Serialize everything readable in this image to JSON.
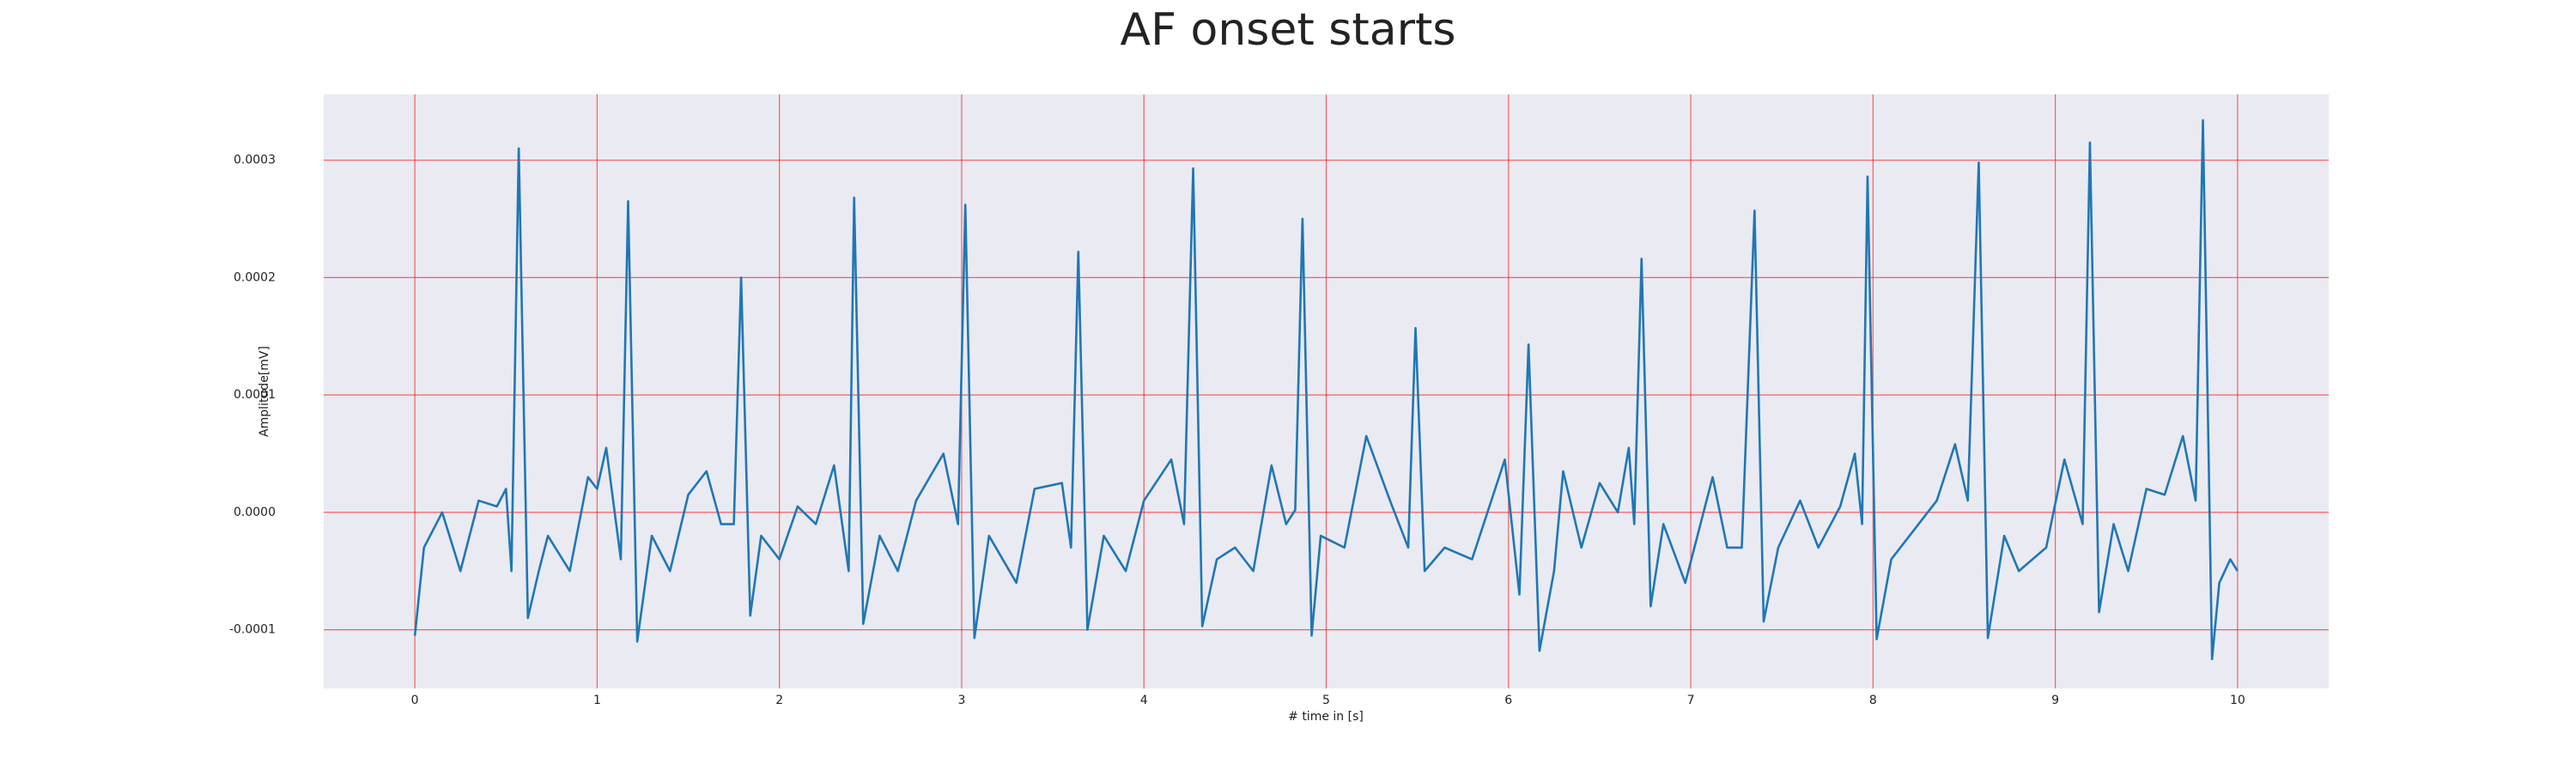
{
  "chart_data": {
    "type": "line",
    "title": "AF onset starts",
    "x_label": "# time in [s]",
    "y_label": "Amplitude[mV]",
    "color": "#1f77b4",
    "grid": true,
    "grid_color": "#ff0000",
    "background": "#eaeaf2",
    "xlim": [
      -0.5,
      10.5
    ],
    "xticks": [
      0,
      1,
      2,
      3,
      4,
      5,
      6,
      7,
      8,
      9,
      10
    ],
    "ylim": [
      -0.00015,
      0.000356
    ],
    "yticks": [
      {
        "value": -0.0001,
        "label": "-0.0001"
      },
      {
        "value": 0,
        "label": "0.0000"
      },
      {
        "value": 0.0001,
        "label": "0.0001"
      },
      {
        "value": 0.0002,
        "label": "0.0002"
      },
      {
        "value": 0.0003,
        "label": "0.0003"
      }
    ],
    "x": [
      0,
      0.05,
      0.15,
      0.25,
      0.35,
      0.45,
      0.5,
      0.53,
      0.57,
      0.62,
      0.68,
      0.73,
      0.85,
      0.95,
      1.0,
      1.05,
      1.13,
      1.17,
      1.22,
      1.3,
      1.4,
      1.5,
      1.6,
      1.68,
      1.75,
      1.79,
      1.84,
      1.9,
      2.0,
      2.1,
      2.2,
      2.3,
      2.38,
      2.41,
      2.46,
      2.55,
      2.65,
      2.75,
      2.9,
      2.98,
      3.02,
      3.07,
      3.15,
      3.3,
      3.4,
      3.55,
      3.6,
      3.64,
      3.69,
      3.78,
      3.9,
      4.0,
      4.15,
      4.22,
      4.27,
      4.32,
      4.4,
      4.5,
      4.6,
      4.7,
      4.78,
      4.83,
      4.87,
      4.92,
      4.97,
      5.1,
      5.22,
      5.35,
      5.45,
      5.49,
      5.54,
      5.65,
      5.8,
      5.98,
      6.06,
      6.11,
      6.17,
      6.25,
      6.3,
      6.4,
      6.5,
      6.6,
      6.66,
      6.69,
      6.73,
      6.78,
      6.85,
      6.97,
      7.12,
      7.2,
      7.28,
      7.35,
      7.4,
      7.48,
      7.6,
      7.7,
      7.82,
      7.9,
      7.94,
      7.97,
      8.02,
      8.1,
      8.2,
      8.35,
      8.45,
      8.52,
      8.58,
      8.63,
      8.72,
      8.8,
      8.95,
      9.05,
      9.15,
      9.19,
      9.24,
      9.32,
      9.4,
      9.5,
      9.6,
      9.7,
      9.77,
      9.81,
      9.86,
      9.9,
      9.96,
      10.0
    ],
    "values": [
      -0.000105,
      -3e-05,
      0,
      -5e-05,
      1e-05,
      5e-06,
      2e-05,
      -5e-05,
      0.00031,
      -9e-05,
      -5e-05,
      -2e-05,
      -5e-05,
      3e-05,
      2e-05,
      5.5e-05,
      -4e-05,
      0.000265,
      -0.00011,
      -2e-05,
      -5e-05,
      1.5e-05,
      3.5e-05,
      -1e-05,
      -1e-05,
      0.0002,
      -8.8e-05,
      -2e-05,
      -4e-05,
      5e-06,
      -1e-05,
      4e-05,
      -5e-05,
      0.000268,
      -9.5e-05,
      -2e-05,
      -5e-05,
      1e-05,
      5e-05,
      -1e-05,
      0.000262,
      -0.000107,
      -2e-05,
      -6e-05,
      2e-05,
      2.5e-05,
      -3e-05,
      0.000222,
      -0.0001,
      -2e-05,
      -5e-05,
      1e-05,
      4.5e-05,
      -1e-05,
      0.000293,
      -9.7e-05,
      -4e-05,
      -3e-05,
      -5e-05,
      4e-05,
      -1e-05,
      2e-06,
      0.00025,
      -0.000105,
      -2e-05,
      -3e-05,
      6.5e-05,
      1e-05,
      -3e-05,
      0.000157,
      -5e-05,
      -3e-05,
      -4e-05,
      4.5e-05,
      -7e-05,
      0.000143,
      -0.000118,
      -5e-05,
      3.5e-05,
      -3e-05,
      2.5e-05,
      0,
      5.5e-05,
      -1e-05,
      0.000216,
      -8e-05,
      -1e-05,
      -6e-05,
      3e-05,
      -3e-05,
      -3e-05,
      0.000257,
      -9.3e-05,
      -3e-05,
      1e-05,
      -3e-05,
      5e-06,
      5e-05,
      -1e-05,
      0.000286,
      -0.000108,
      -4e-05,
      -2e-05,
      1e-05,
      5.8e-05,
      1e-05,
      0.000298,
      -0.000107,
      -2e-05,
      -5e-05,
      -3e-05,
      4.5e-05,
      -1e-05,
      0.000315,
      -8.5e-05,
      -1e-05,
      -5e-05,
      2e-05,
      1.5e-05,
      6.5e-05,
      1e-05,
      0.000334,
      -0.000125,
      -6e-05,
      -4e-05,
      -5e-05
    ]
  }
}
